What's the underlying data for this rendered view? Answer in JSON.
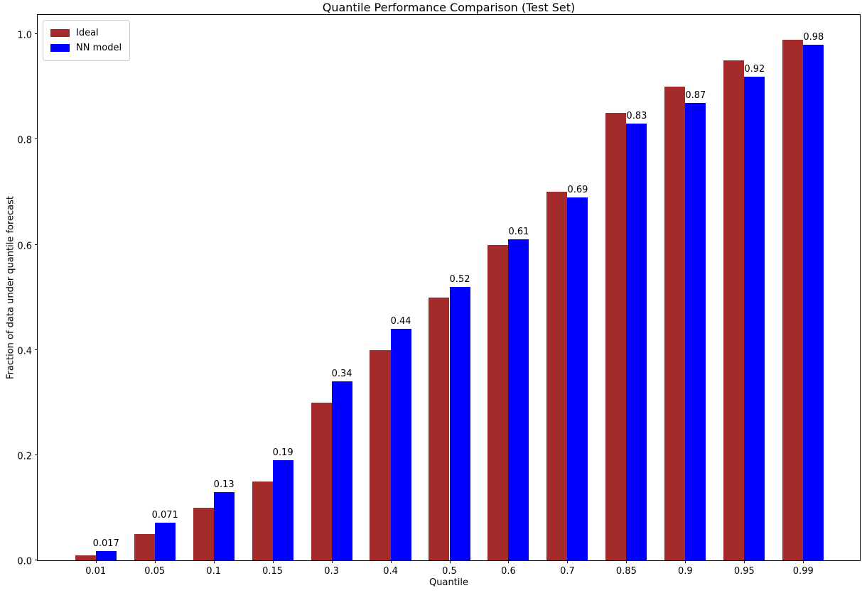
{
  "chart_data": {
    "type": "bar",
    "title": "Quantile Performance Comparison (Test Set)",
    "xlabel": "Quantile",
    "ylabel": "Fraction of data under quantile forecast",
    "categories": [
      "0.01",
      "0.05",
      "0.1",
      "0.15",
      "0.3",
      "0.4",
      "0.5",
      "0.6",
      "0.7",
      "0.85",
      "0.9",
      "0.95",
      "0.99"
    ],
    "series": [
      {
        "name": "Ideal",
        "color": "#a52a2a",
        "values": [
          0.01,
          0.05,
          0.1,
          0.15,
          0.3,
          0.4,
          0.5,
          0.6,
          0.7,
          0.85,
          0.9,
          0.95,
          0.99
        ]
      },
      {
        "name": "NN model",
        "color": "#0000ff",
        "values": [
          0.017,
          0.071,
          0.13,
          0.19,
          0.34,
          0.44,
          0.52,
          0.61,
          0.69,
          0.83,
          0.87,
          0.92,
          0.98
        ],
        "value_labels": [
          "0.017",
          "0.071",
          "0.13",
          "0.19",
          "0.34",
          "0.44",
          "0.52",
          "0.61",
          "0.69",
          "0.83",
          "0.87",
          "0.92",
          "0.98"
        ]
      }
    ],
    "yticks": [
      "0.0",
      "0.2",
      "0.4",
      "0.6",
      "0.8",
      "1.0"
    ],
    "ylim": [
      0,
      1.0395
    ],
    "grid": false,
    "legend_position": "upper left",
    "background_color": "#ffffff",
    "text_color": "#000000"
  }
}
